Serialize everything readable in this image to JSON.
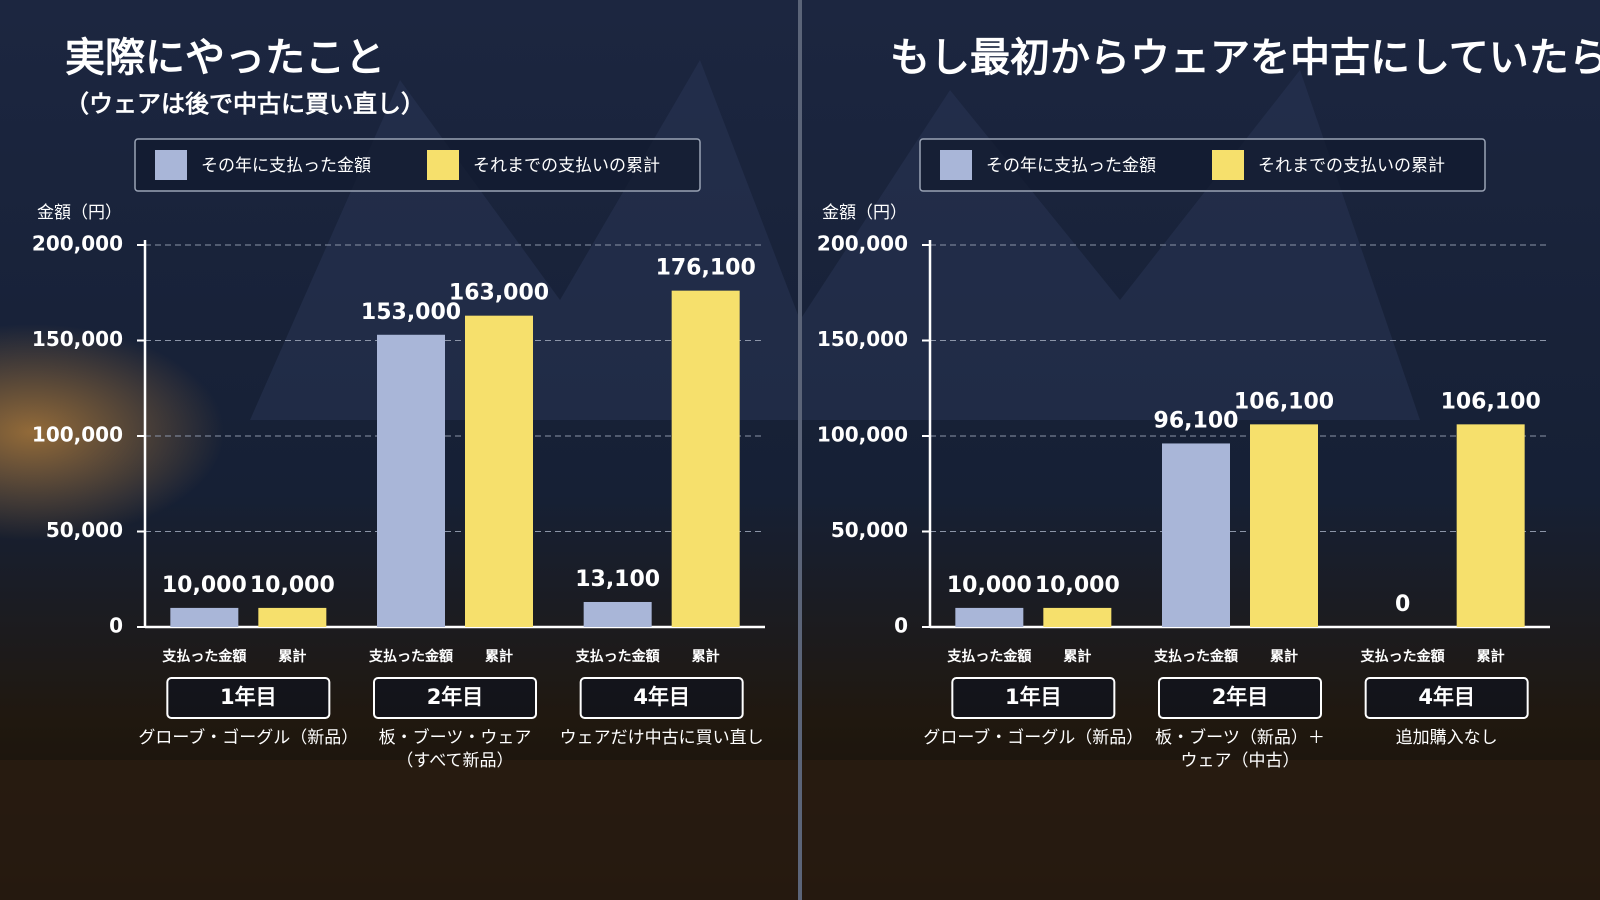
{
  "chart_data": [
    {
      "type": "bar",
      "title": "実際にやったこと",
      "subtitle": "（ウェアは後で中古に買い直し）",
      "y_label": "金額（円）",
      "categories": [
        "1年目",
        "2年目",
        "4年目"
      ],
      "bar_labels": [
        "支払った金額",
        "累計"
      ],
      "descriptions": [
        [
          "グローブ・ゴーグル（新品）"
        ],
        [
          "板・ブーツ・ウェア",
          "（すべて新品）"
        ],
        [
          "ウェアだけ中古に買い直し"
        ]
      ],
      "series": [
        {
          "name": "その年に支払った金額",
          "color": "#a9b6d8",
          "values": [
            10000,
            153000,
            13100
          ],
          "value_labels": [
            "10,000",
            "153,000",
            "13,100"
          ]
        },
        {
          "name": "それまでの支払いの累計",
          "color": "#f6e06c",
          "values": [
            10000,
            163000,
            176100
          ],
          "value_labels": [
            "10,000",
            "163,000",
            "176,100"
          ]
        }
      ],
      "ylim": [
        0,
        200000
      ],
      "yticks": [
        0,
        {
          "value": 50000,
          "label": "50,000"
        },
        {
          "value": 100000,
          "label": "100,000"
        },
        {
          "value": 150000,
          "label": "150,000"
        },
        {
          "value": 200000,
          "label": "200,000"
        }
      ],
      "grid": true
    },
    {
      "type": "bar",
      "title": "もし最初からウェアを中古にしていたら",
      "y_label": "金額（円）",
      "categories": [
        "1年目",
        "2年目",
        "4年目"
      ],
      "bar_labels": [
        "支払った金額",
        "累計"
      ],
      "descriptions": [
        [
          "グローブ・ゴーグル（新品）"
        ],
        [
          "板・ブーツ（新品）＋",
          "ウェア（中古）"
        ],
        [
          "追加購入なし"
        ]
      ],
      "series": [
        {
          "name": "その年に支払った金額",
          "color": "#a9b6d8",
          "values": [
            10000,
            96100,
            0
          ],
          "value_labels": [
            "10,000",
            "96,100",
            "0"
          ]
        },
        {
          "name": "それまでの支払いの累計",
          "color": "#f6e06c",
          "values": [
            10000,
            106100,
            106100
          ],
          "value_labels": [
            "10,000",
            "106,100",
            "106,100"
          ]
        }
      ],
      "ylim": [
        0,
        200000
      ],
      "yticks": [
        0,
        {
          "value": 50000,
          "label": "50,000"
        },
        {
          "value": 100000,
          "label": "100,000"
        },
        {
          "value": 150000,
          "label": "150,000"
        },
        {
          "value": 200000,
          "label": "200,000"
        }
      ],
      "grid": true
    }
  ]
}
